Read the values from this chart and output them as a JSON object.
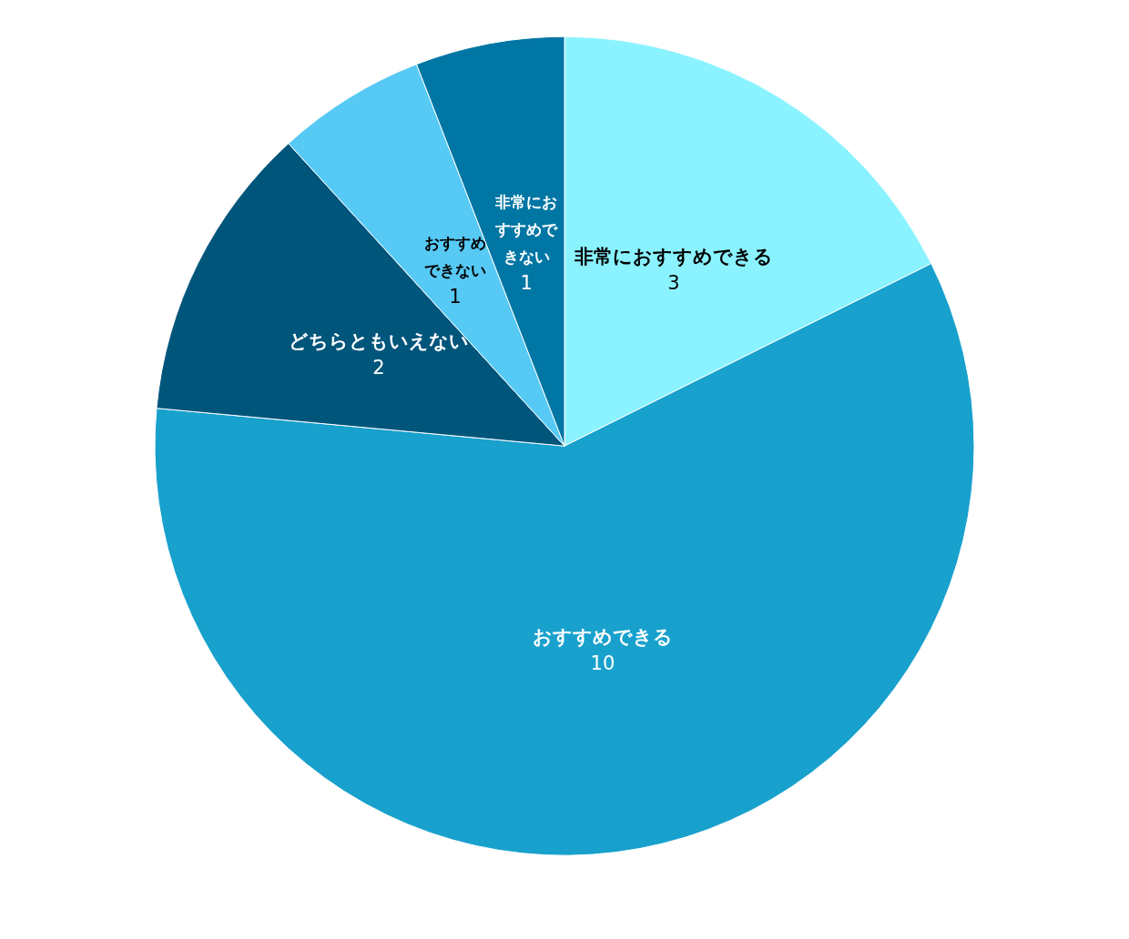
{
  "chart_data": {
    "type": "pie",
    "categories": [
      "非常におすすめできる",
      "おすすめできる",
      "どちらともいえない",
      "おすすめできない",
      "非常におすすめできない"
    ],
    "values": [
      3,
      10,
      2,
      1,
      1
    ],
    "colors": [
      "#8af3ff",
      "#18a1cd",
      "#00557b",
      "#56c9f5",
      "#0076a4"
    ],
    "data_labels": true,
    "legend": false
  }
}
